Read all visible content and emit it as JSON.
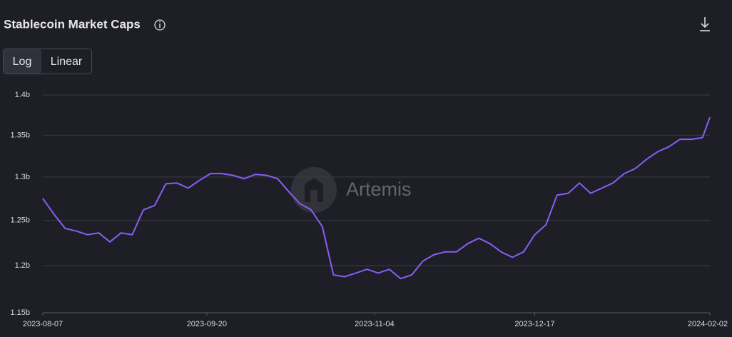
{
  "chart_data": {
    "type": "line",
    "title": "Stablecoin Market Caps",
    "scale_options": [
      "Log",
      "Linear"
    ],
    "watermark": "Artemis",
    "log_scale": true,
    "grid": true,
    "color": "#8b5cf6",
    "x": [
      "2023-08-07",
      "2023-08-10",
      "2023-08-13",
      "2023-08-16",
      "2023-08-19",
      "2023-08-22",
      "2023-08-25",
      "2023-08-28",
      "2023-08-31",
      "2023-09-03",
      "2023-09-06",
      "2023-09-09",
      "2023-09-12",
      "2023-09-15",
      "2023-09-18",
      "2023-09-21",
      "2023-09-24",
      "2023-09-27",
      "2023-09-30",
      "2023-10-03",
      "2023-10-06",
      "2023-10-09",
      "2023-10-12",
      "2023-10-15",
      "2023-10-18",
      "2023-10-21",
      "2023-10-24",
      "2023-10-27",
      "2023-10-30",
      "2023-11-02",
      "2023-11-05",
      "2023-11-08",
      "2023-11-11",
      "2023-11-14",
      "2023-11-17",
      "2023-11-20",
      "2023-11-23",
      "2023-11-26",
      "2023-11-29",
      "2023-12-02",
      "2023-12-05",
      "2023-12-08",
      "2023-12-11",
      "2023-12-14",
      "2023-12-17",
      "2023-12-20",
      "2023-12-23",
      "2023-12-26",
      "2023-12-29",
      "2024-01-01",
      "2024-01-04",
      "2024-01-07",
      "2024-01-10",
      "2024-01-13",
      "2024-01-16",
      "2024-01-19",
      "2024-01-22",
      "2024-01-25",
      "2024-01-28",
      "2024-01-31",
      "2024-02-02"
    ],
    "values": [
      1.275,
      1.257,
      1.241,
      1.238,
      1.234,
      1.236,
      1.226,
      1.236,
      1.234,
      1.262,
      1.267,
      1.292,
      1.293,
      1.287,
      1.296,
      1.304,
      1.304,
      1.302,
      1.298,
      1.303,
      1.302,
      1.298,
      1.283,
      1.269,
      1.262,
      1.243,
      1.19,
      1.188,
      1.192,
      1.196,
      1.192,
      1.196,
      1.186,
      1.19,
      1.205,
      1.212,
      1.215,
      1.215,
      1.224,
      1.23,
      1.224,
      1.215,
      1.209,
      1.215,
      1.234,
      1.245,
      1.279,
      1.281,
      1.293,
      1.281,
      1.287,
      1.293,
      1.304,
      1.31,
      1.321,
      1.33,
      1.336,
      1.345,
      1.345,
      1.347,
      1.372
    ],
    "xlim": [
      "2023-08-07",
      "2024-02-02"
    ],
    "xticks": [
      "2023-08-07",
      "2023-09-20",
      "2023-11-04",
      "2023-12-17",
      "2024-02-02"
    ],
    "ylim": [
      1.15,
      1.4
    ],
    "yticks": [
      {
        "value": 1.15,
        "label": "1.15b"
      },
      {
        "value": 1.2,
        "label": "1.2b"
      },
      {
        "value": 1.25,
        "label": "1.25b"
      },
      {
        "value": 1.3,
        "label": "1.3b"
      },
      {
        "value": 1.35,
        "label": "1.35b"
      },
      {
        "value": 1.4,
        "label": "1.4b"
      }
    ]
  }
}
